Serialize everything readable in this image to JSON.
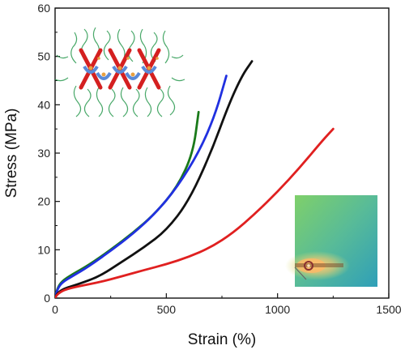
{
  "chart_data": {
    "type": "line",
    "xlabel": "Strain (%)",
    "ylabel": "Stress (MPa)",
    "xlim": [
      0,
      1500
    ],
    "ylim": [
      0,
      60
    ],
    "xticks": [
      0,
      500,
      1000,
      1500
    ],
    "yticks": [
      0,
      10,
      20,
      30,
      40,
      50,
      60
    ],
    "grid": false,
    "series": [
      {
        "color": "#1a7a1a",
        "points": [
          [
            0,
            0
          ],
          [
            10,
            2
          ],
          [
            30,
            3.5
          ],
          [
            80,
            5
          ],
          [
            150,
            6.8
          ],
          [
            250,
            10
          ],
          [
            350,
            13.5
          ],
          [
            450,
            17.5
          ],
          [
            550,
            23
          ],
          [
            620,
            30
          ],
          [
            645,
            38.5
          ]
        ]
      },
      {
        "color": "#2030e0",
        "points": [
          [
            0,
            0
          ],
          [
            10,
            1.8
          ],
          [
            30,
            3.2
          ],
          [
            80,
            4.6
          ],
          [
            150,
            6.5
          ],
          [
            250,
            9.8
          ],
          [
            350,
            13.3
          ],
          [
            450,
            17.5
          ],
          [
            550,
            23
          ],
          [
            650,
            30.5
          ],
          [
            720,
            38
          ],
          [
            770,
            46
          ]
        ]
      },
      {
        "color": "#111111",
        "points": [
          [
            0,
            0
          ],
          [
            10,
            1
          ],
          [
            40,
            2
          ],
          [
            100,
            2.8
          ],
          [
            200,
            4.5
          ],
          [
            300,
            7.5
          ],
          [
            400,
            10.5
          ],
          [
            500,
            14
          ],
          [
            600,
            20
          ],
          [
            700,
            30
          ],
          [
            780,
            40
          ],
          [
            840,
            46
          ],
          [
            885,
            49
          ]
        ]
      },
      {
        "color": "#e02020",
        "points": [
          [
            0,
            0
          ],
          [
            10,
            0.8
          ],
          [
            40,
            1.7
          ],
          [
            100,
            2.4
          ],
          [
            200,
            3.3
          ],
          [
            300,
            4.5
          ],
          [
            400,
            5.8
          ],
          [
            500,
            7
          ],
          [
            600,
            8.5
          ],
          [
            700,
            10.5
          ],
          [
            800,
            13.5
          ],
          [
            900,
            17.5
          ],
          [
            1000,
            22
          ],
          [
            1100,
            27
          ],
          [
            1200,
            32.5
          ],
          [
            1250,
            35
          ]
        ]
      }
    ]
  },
  "insets": {
    "molecular_structure_icon": "molecular-structure-inset",
    "scattering_pattern_icon": "scattering-pattern-inset"
  }
}
